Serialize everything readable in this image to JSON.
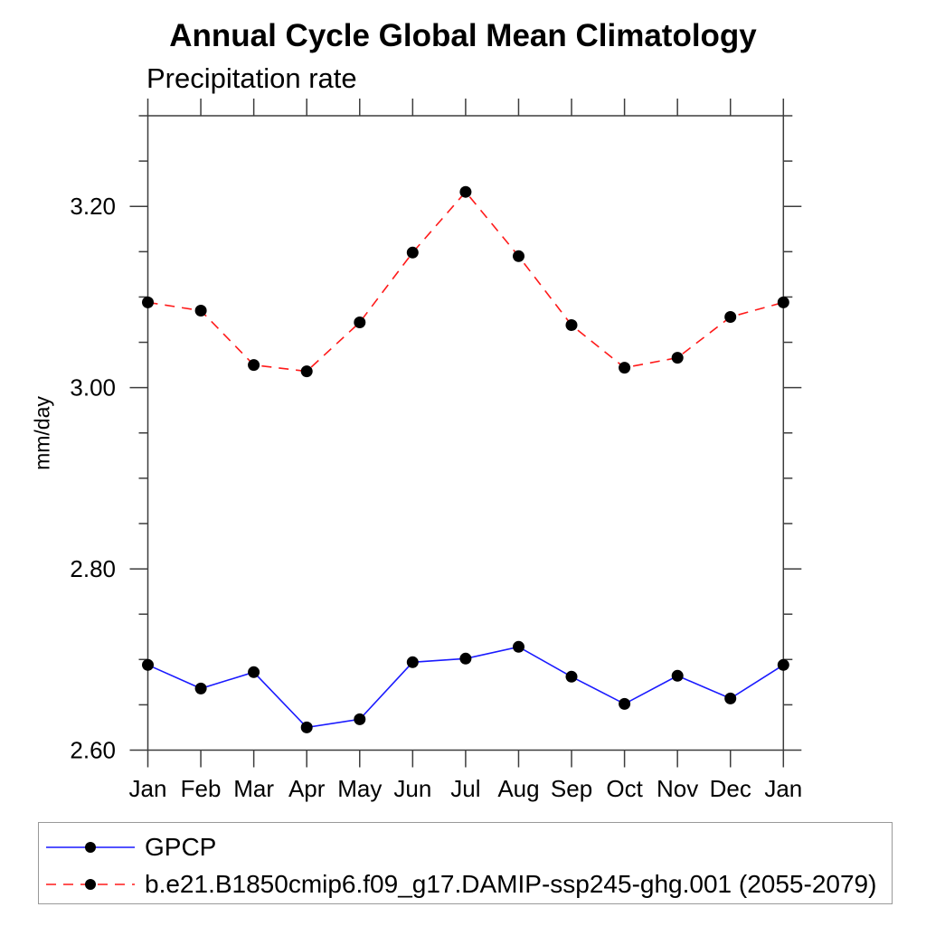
{
  "chart_data": {
    "type": "line",
    "title": "Annual Cycle Global Mean Climatology",
    "subtitle": "Precipitation rate",
    "ylabel": "mm/day",
    "xlabel": "",
    "x_categories": [
      "Jan",
      "Feb",
      "Mar",
      "Apr",
      "May",
      "Jun",
      "Jul",
      "Aug",
      "Sep",
      "Oct",
      "Nov",
      "Dec",
      "Jan"
    ],
    "ylim": [
      2.6,
      3.3
    ],
    "y_major_ticks": [
      2.6,
      2.8,
      3.0,
      3.2
    ],
    "y_major_tick_labels": [
      "2.60",
      "2.80",
      "3.00",
      "3.20"
    ],
    "y_minor_step": 0.05,
    "grid": false,
    "legend_position": "bottom",
    "axis_color": "#3d3d3d",
    "marker_radius": 6.5,
    "series": [
      {
        "name": "GPCP",
        "color": "#1a1aff",
        "line_style": "solid",
        "marker": "circle",
        "marker_color": "#000000",
        "values": [
          2.694,
          2.668,
          2.686,
          2.625,
          2.634,
          2.697,
          2.701,
          2.714,
          2.681,
          2.651,
          2.682,
          2.657,
          2.694
        ]
      },
      {
        "name": "b.e21.B1850cmip6.f09_g17.DAMIP-ssp245-ghg.001 (2055-2079)",
        "color": "#ff1a1a",
        "line_style": "dashed",
        "marker": "circle",
        "marker_color": "#000000",
        "values": [
          3.094,
          3.085,
          3.025,
          3.018,
          3.072,
          3.149,
          3.216,
          3.145,
          3.069,
          3.022,
          3.033,
          3.078,
          3.094
        ]
      }
    ]
  }
}
